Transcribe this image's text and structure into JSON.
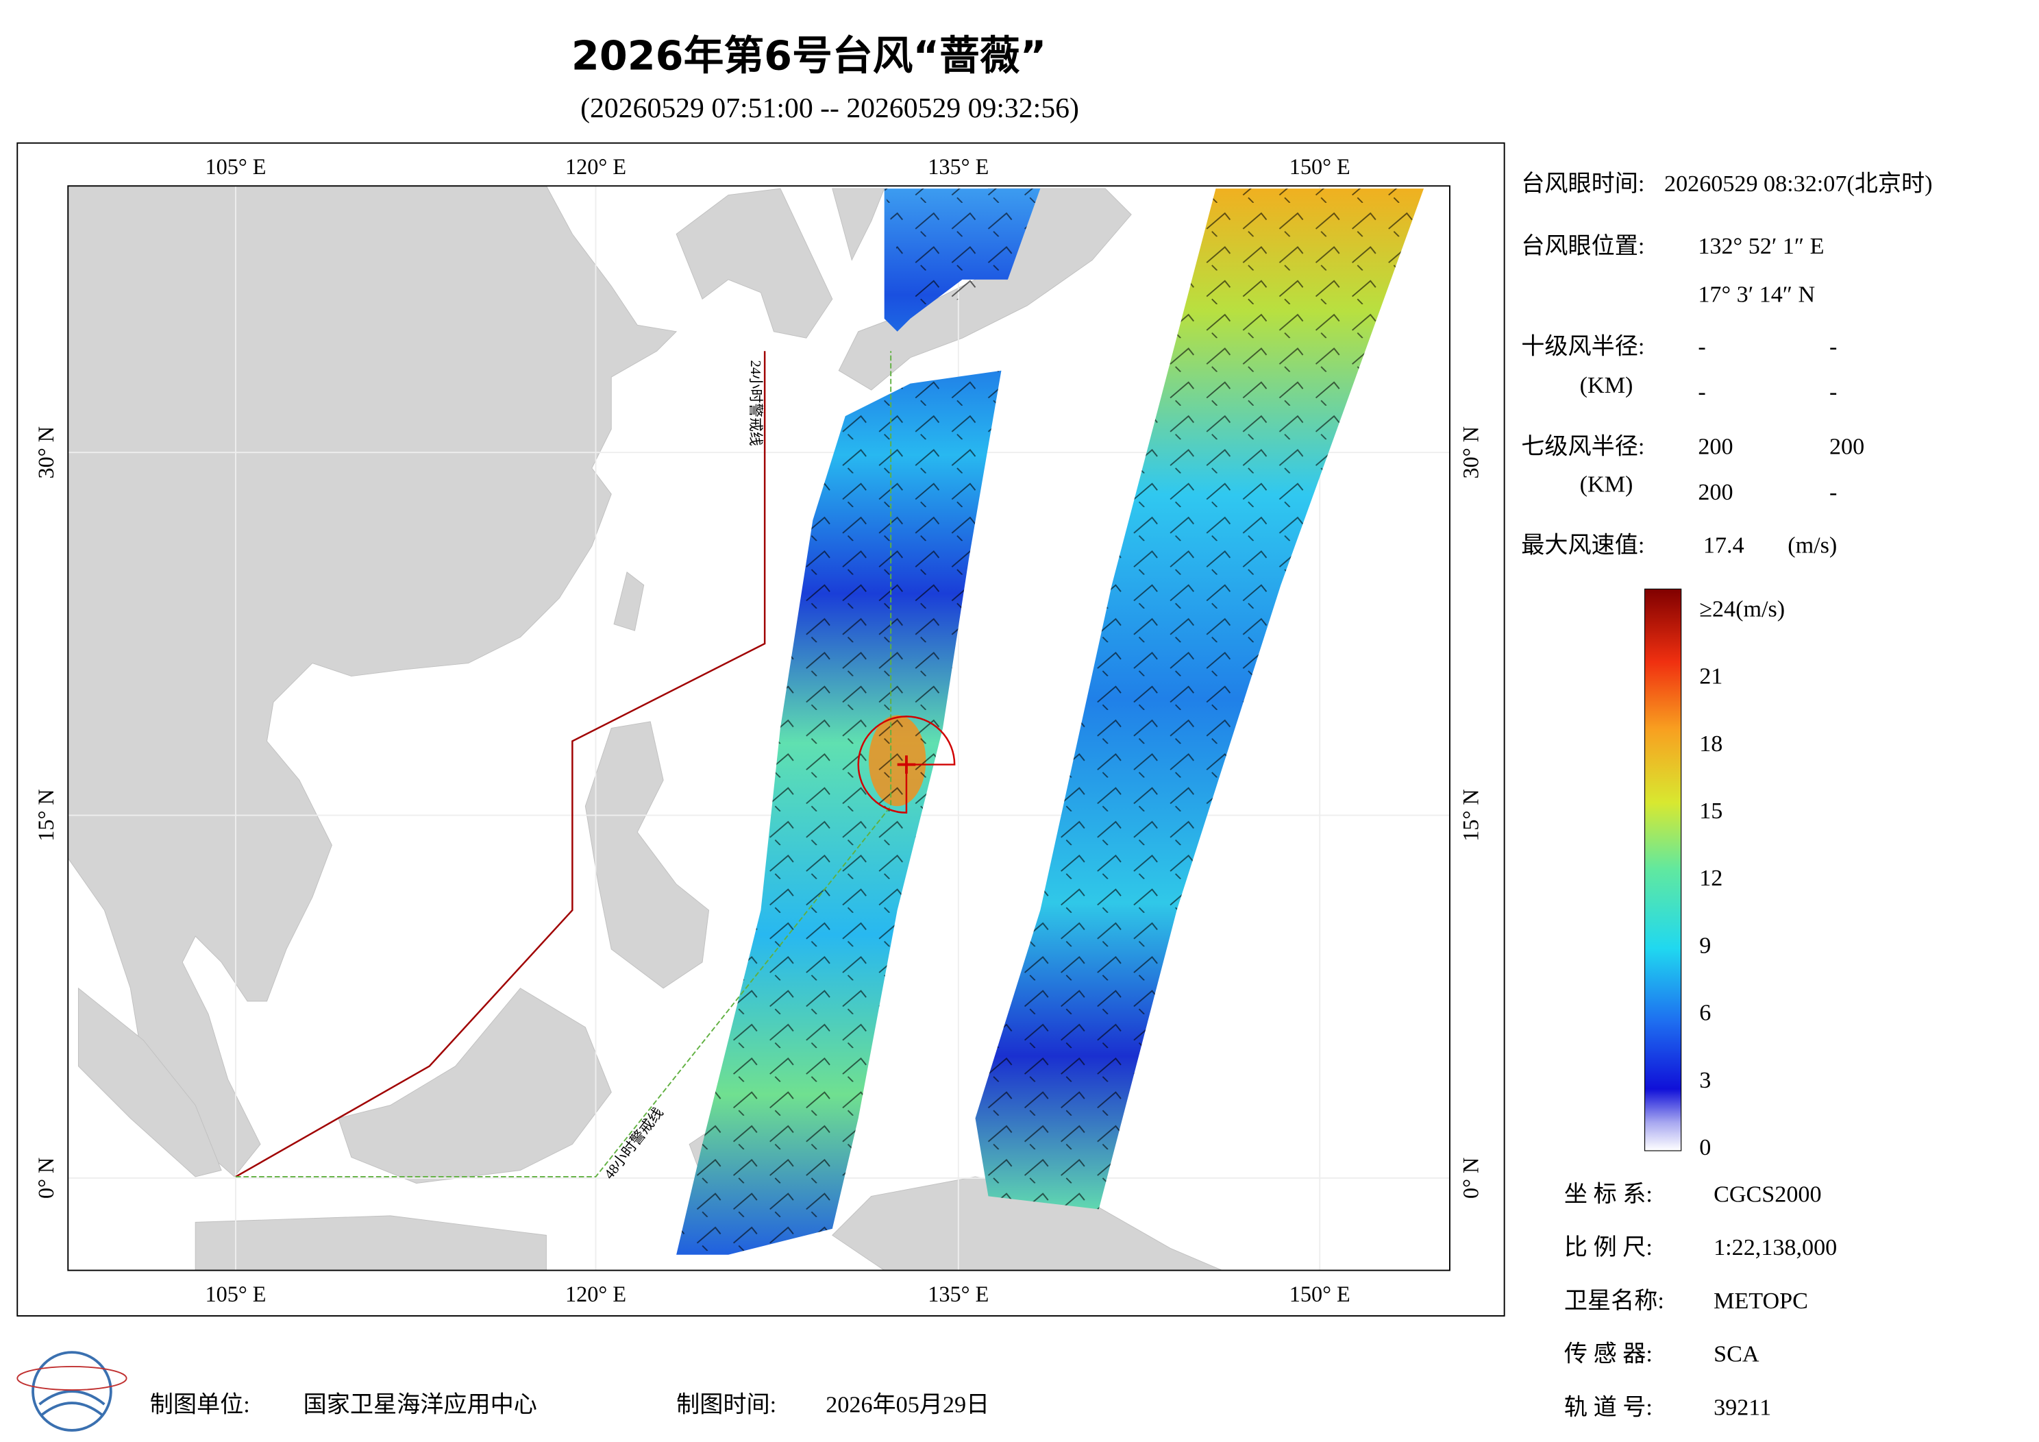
{
  "header": {
    "title": "2026年第6号台风“蔷薇”",
    "subtitle": "(20260529 07:51:00 -- 20260529 09:32:56)"
  },
  "map": {
    "lon_labels": [
      "105° E",
      "120° E",
      "135° E",
      "150° E"
    ],
    "lat_labels": [
      "30° N",
      "15° N",
      "0° N"
    ],
    "lines": [
      "24小时警戒线",
      "48小时警戒线"
    ]
  },
  "info": {
    "eye_time_label": "台风眼时间:",
    "eye_time": "20260529 08:32:07(北京时)",
    "eye_pos_label": "台风眼位置:",
    "eye_lon": "132° 52′ 1″ E",
    "eye_lat": "17° 3′ 14″ N",
    "r10_label": "十级风半径:",
    "r10_unit": "(KM)",
    "r10": [
      "-",
      "-",
      "-",
      "-"
    ],
    "r7_label": "七级风半径:",
    "r7_unit": "(KM)",
    "r7": [
      "200",
      "200",
      "200",
      "-"
    ],
    "max_label": "最大风速值:",
    "max_value": "17.4",
    "max_unit": "(m/s)"
  },
  "colorbar": {
    "labels": [
      "≥24(m/s)",
      "21",
      "18",
      "15",
      "12",
      "9",
      "6",
      "3",
      "0"
    ]
  },
  "meta": [
    {
      "label": "坐 标 系:",
      "value": "CGCS2000"
    },
    {
      "label": "比 例 尺:",
      "value": "1:22,138,000"
    },
    {
      "label": "卫星名称:",
      "value": "METOPC"
    },
    {
      "label": "传 感 器:",
      "value": "SCA"
    },
    {
      "label": "轨 道 号:",
      "value": "39211"
    }
  ],
  "footer": {
    "unit_label": "制图单位:",
    "unit": "国家卫星海洋应用中心",
    "time_label": "制图时间:",
    "time": "2026年05月29日"
  }
}
